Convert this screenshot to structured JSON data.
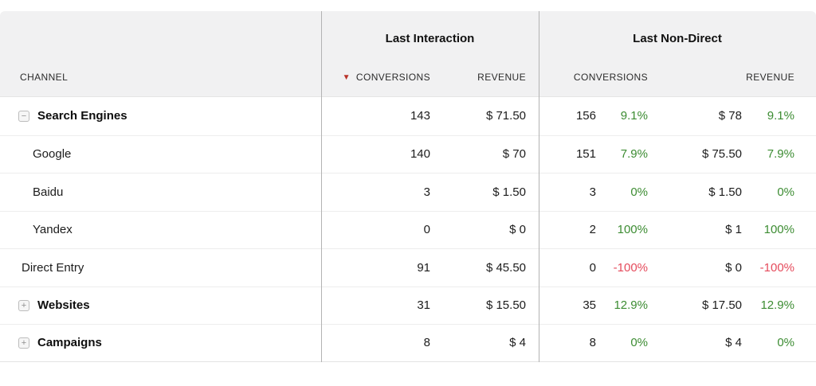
{
  "colors": {
    "header-bg": "#f1f1f2",
    "positive": "#3c8c32",
    "negative": "#e54b5c",
    "sort-arrow": "#b93228",
    "divider": "#b3b3b3",
    "row-line": "#ededed"
  },
  "table": {
    "header": {
      "channel_label": "CHANNEL",
      "group_last_interaction": "Last Interaction",
      "group_last_non_direct": "Last Non-Direct",
      "sort_desc_icon": "▼",
      "li_conversions_label": "CONVERSIONS",
      "li_revenue_label": "REVENUE",
      "lnd_conversions_label": "CONVERSIONS",
      "lnd_revenue_label": "REVENUE"
    },
    "rows": [
      {
        "channel": "Search Engines",
        "toggle_icon": "−",
        "li_conversions": "143",
        "li_revenue": "$ 71.50",
        "lnd_conversions": "156",
        "lnd_conversions_delta": "9.1%",
        "lnd_revenue": "$ 78",
        "lnd_revenue_delta": "9.1%"
      },
      {
        "channel": "Google",
        "li_conversions": "140",
        "li_revenue": "$ 70",
        "lnd_conversions": "151",
        "lnd_conversions_delta": "7.9%",
        "lnd_revenue": "$ 75.50",
        "lnd_revenue_delta": "7.9%"
      },
      {
        "channel": "Baidu",
        "li_conversions": "3",
        "li_revenue": "$ 1.50",
        "lnd_conversions": "3",
        "lnd_conversions_delta": "0%",
        "lnd_revenue": "$ 1.50",
        "lnd_revenue_delta": "0%"
      },
      {
        "channel": "Yandex",
        "li_conversions": "0",
        "li_revenue": "$ 0",
        "lnd_conversions": "2",
        "lnd_conversions_delta": "100%",
        "lnd_revenue": "$ 1",
        "lnd_revenue_delta": "100%"
      },
      {
        "channel": "Direct Entry",
        "li_conversions": "91",
        "li_revenue": "$ 45.50",
        "lnd_conversions": "0",
        "lnd_conversions_delta": "-100%",
        "lnd_revenue": "$ 0",
        "lnd_revenue_delta": "-100%"
      },
      {
        "channel": "Websites",
        "toggle_icon": "+",
        "li_conversions": "31",
        "li_revenue": "$ 15.50",
        "lnd_conversions": "35",
        "lnd_conversions_delta": "12.9%",
        "lnd_revenue": "$ 17.50",
        "lnd_revenue_delta": "12.9%"
      },
      {
        "channel": "Campaigns",
        "toggle_icon": "+",
        "li_conversions": "8",
        "li_revenue": "$ 4",
        "lnd_conversions": "8",
        "lnd_conversions_delta": "0%",
        "lnd_revenue": "$ 4",
        "lnd_revenue_delta": "0%"
      }
    ]
  }
}
